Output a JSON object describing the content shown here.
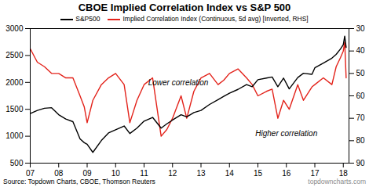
{
  "chart_data": {
    "type": "line",
    "title": "CBOE Implied Correlation Index vs S&P 500",
    "source": "Source: Topdown Charts, CBOE, Thomson Reuters",
    "watermark": "topdowncharts.com",
    "legend": "top",
    "grid": false,
    "x": [
      2007.0,
      2007.25,
      2007.5,
      2007.75,
      2008.0,
      2008.25,
      2008.5,
      2008.75,
      2008.9,
      2009.0,
      2009.2,
      2009.5,
      2009.75,
      2010.0,
      2010.3,
      2010.5,
      2010.75,
      2011.0,
      2011.3,
      2011.6,
      2011.8,
      2012.0,
      2012.3,
      2012.5,
      2012.75,
      2013.0,
      2013.3,
      2013.6,
      2013.8,
      2014.0,
      2014.3,
      2014.6,
      2014.8,
      2015.0,
      2015.3,
      2015.5,
      2015.7,
      2015.9,
      2016.1,
      2016.4,
      2016.6,
      2016.9,
      2017.0,
      2017.3,
      2017.6,
      2017.75,
      2017.9,
      2018.0,
      2018.05,
      2018.1
    ],
    "xlim": [
      2007,
      2018.2
    ],
    "xticks": [
      {
        "value": 2007,
        "label": "07"
      },
      {
        "value": 2008,
        "label": "08"
      },
      {
        "value": 2009,
        "label": "09"
      },
      {
        "value": 2010,
        "label": "10"
      },
      {
        "value": 2011,
        "label": "11"
      },
      {
        "value": 2012,
        "label": "12"
      },
      {
        "value": 2013,
        "label": "13"
      },
      {
        "value": 2014,
        "label": "14"
      },
      {
        "value": 2015,
        "label": "15"
      },
      {
        "value": 2016,
        "label": "16"
      },
      {
        "value": 2017,
        "label": "17"
      },
      {
        "value": 2018,
        "label": "18"
      }
    ],
    "ylim": [
      500,
      3000
    ],
    "yticks": [
      500,
      1000,
      1500,
      2000,
      2500,
      3000
    ],
    "y2lim": [
      90,
      30
    ],
    "y2ticks": [
      30,
      40,
      50,
      60,
      70,
      80,
      90
    ],
    "series": [
      {
        "name": "Implied Correlation Index (Continuous, 5d avg) [Inverted, RHS]",
        "color": "#e3231b",
        "axis": "y2",
        "values": [
          39,
          45,
          47,
          50,
          50,
          52,
          52,
          60,
          65,
          72,
          62,
          55,
          52,
          50,
          55,
          72,
          62,
          55,
          52,
          78,
          75,
          70,
          60,
          70,
          58,
          52,
          50,
          55,
          53,
          50,
          48,
          52,
          55,
          60,
          58,
          57,
          70,
          62,
          66,
          55,
          62,
          56,
          55,
          52,
          55,
          47,
          43,
          40,
          36,
          52
        ]
      },
      {
        "name": "S&P500",
        "color": "#000000",
        "axis": "y",
        "values": [
          1420,
          1480,
          1520,
          1530,
          1400,
          1320,
          1270,
          950,
          880,
          850,
          700,
          920,
          1060,
          1120,
          1190,
          1050,
          1150,
          1280,
          1350,
          1150,
          1230,
          1300,
          1400,
          1360,
          1440,
          1480,
          1590,
          1680,
          1740,
          1800,
          1870,
          1960,
          1920,
          2050,
          2080,
          2100,
          1920,
          2080,
          1880,
          2090,
          2170,
          2150,
          2270,
          2360,
          2450,
          2520,
          2620,
          2700,
          2860,
          2650
        ]
      }
    ],
    "annotations": [
      {
        "text": "Lower correlation",
        "x": 2012.2,
        "y": 2000
      },
      {
        "text": "Higher correlation",
        "x": 2016.0,
        "y": 1050
      }
    ]
  }
}
